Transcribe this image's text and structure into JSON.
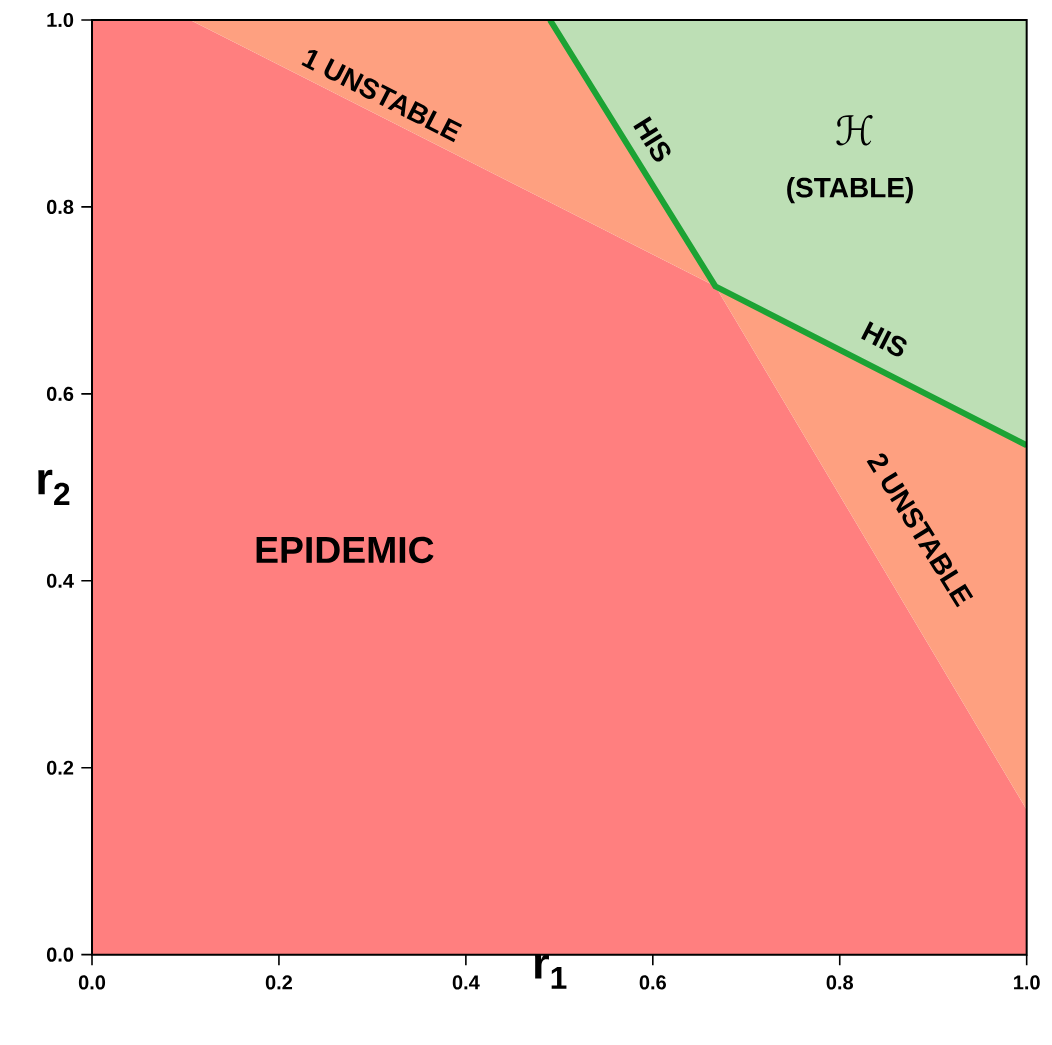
{
  "chart_data": {
    "type": "area",
    "stacked": true,
    "xlabel": "r$_{1}$",
    "ylabel": "r$_{2}$",
    "x": [
      0,
      0.105,
      0.49,
      0.667,
      1.0
    ],
    "series": [
      {
        "color": "#ff7f7f",
        "values": [
          1.0,
          1.0,
          0.805,
          0.715,
          0.155
        ]
      },
      {
        "color": "#fea080",
        "values": [
          0,
          0,
          0.195,
          0,
          0.39
        ]
      },
      {
        "color": "#bddfb5",
        "values": [
          0,
          0,
          0,
          0.285,
          0.455
        ]
      },
      {
        "type": "line",
        "color": "#1ca334",
        "x": [
          0.49,
          0.667,
          1.0
        ],
        "values": [
          1.0,
          0.715,
          0.545
        ]
      }
    ],
    "xlim": [
      0,
      1
    ],
    "ylim": [
      0,
      1
    ],
    "xticks": [
      {
        "value": 0,
        "label": "0.0"
      },
      0.2,
      0.4,
      0.6,
      0.8,
      {
        "value": 1,
        "label": "1.0"
      }
    ],
    "yticks": [
      {
        "value": 0,
        "label": "0.0"
      },
      0.2,
      0.4,
      0.6,
      0.8,
      {
        "value": 1,
        "label": "1.0"
      }
    ],
    "annotations": [
      "EPIDEMIC",
      "1 UNSTABLE",
      "HIS",
      "HIS",
      "2 UNSTABLE",
      "ℋ",
      "(STABLE)"
    ]
  }
}
